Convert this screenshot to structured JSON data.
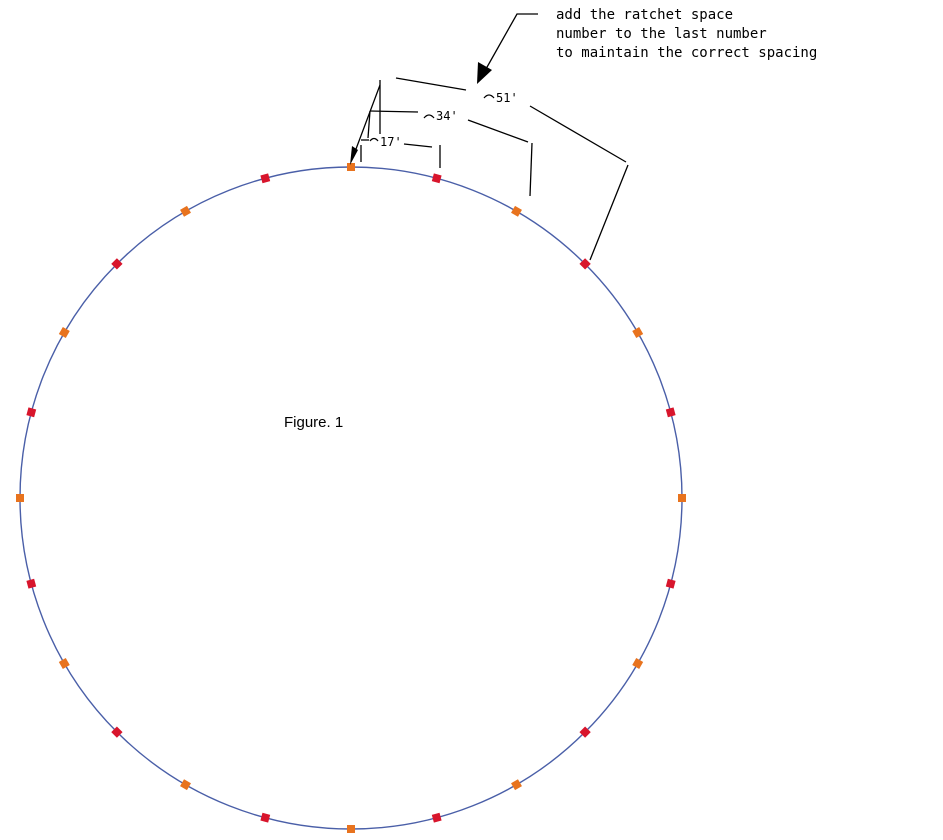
{
  "note": {
    "lines": [
      "add the ratchet space",
      "number to the last number",
      "to maintain the correct spacing"
    ]
  },
  "dimensions": {
    "d17": "17'",
    "d34": "34'",
    "d51": "51'"
  },
  "figure_label": "Figure. 1",
  "colors": {
    "circle": "#4a5fa8",
    "marker_a": "#e8731e",
    "marker_b": "#d8152c",
    "line": "#000000"
  },
  "marker_count": 24
}
